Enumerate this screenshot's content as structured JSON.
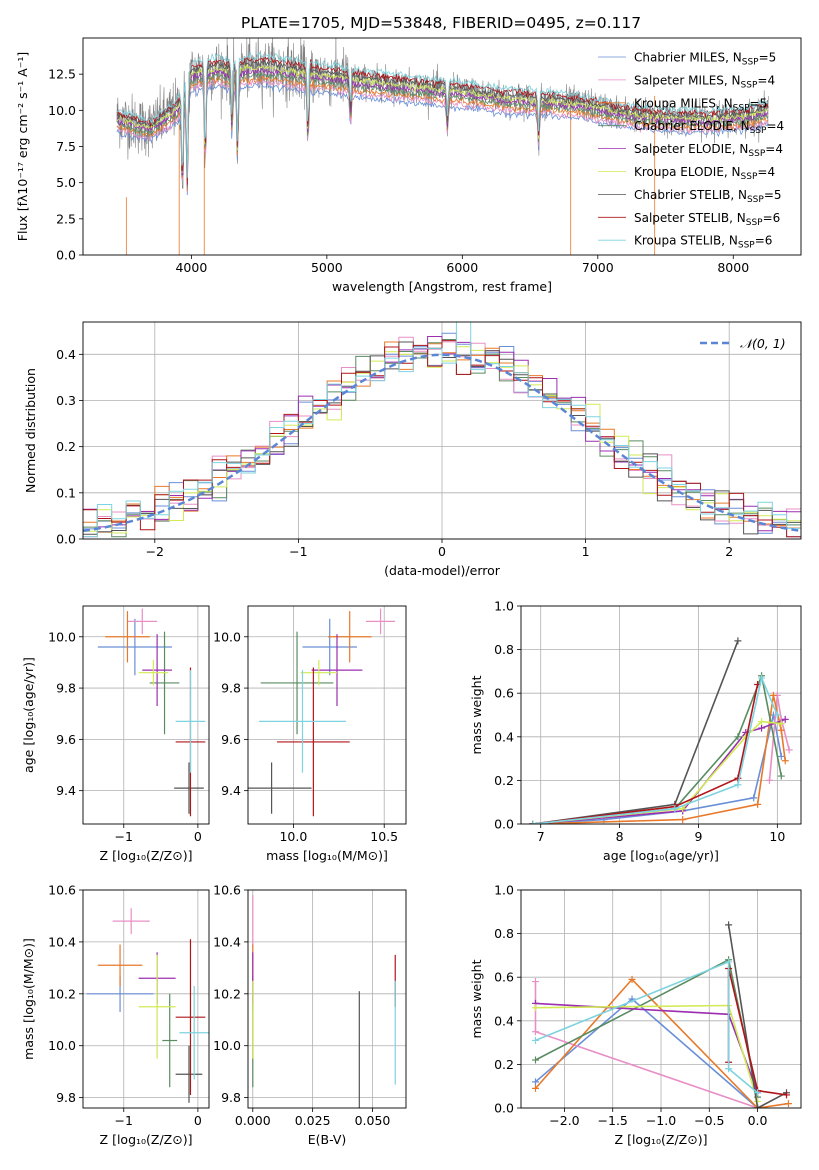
{
  "title": "PLATE=1705, MJD=53848, FIBERID=0495, z=0.117",
  "colors": {
    "Chabrier MILES": "#6a8fd8",
    "Salpeter MILES": "#e88fc6",
    "Kroupa MILES": "#e8792a",
    "Chabrier ELODIE": "#5a8c62",
    "Salpeter ELODIE": "#9b2fb0",
    "Kroupa ELODIE": "#d2ea55",
    "Chabrier STELIB": "#555555",
    "Salpeter STELIB": "#b0151a",
    "Kroupa STELIB": "#7dd3df",
    "data": "#808080",
    "gauss": "#5b86d6"
  },
  "chart_data": [
    {
      "type": "line",
      "title": "PLATE=1705, MJD=53848, FIBERID=0495, z=0.117",
      "xlabel": "wavelength [Angstrom, rest frame]",
      "ylabel": "Flux [fλ10⁻¹⁷ erg cm⁻² s⁻¹ A⁻¹]",
      "xlim": [
        3200,
        8500
      ],
      "ylim": [
        0,
        15
      ],
      "xticks": [
        4000,
        5000,
        6000,
        7000,
        8000
      ],
      "yticks": [
        0.0,
        2.5,
        5.0,
        7.5,
        10.0,
        12.5
      ],
      "legend": "upper right",
      "legend_entries": [
        {
          "name": "Chabrier MILES",
          "label": "Chabrier MILES, N",
          "n": "=5"
        },
        {
          "name": "Salpeter MILES",
          "label": "Salpeter MILES, N",
          "n": "=4"
        },
        {
          "name": "Kroupa MILES",
          "label": "Kroupa MILES, N",
          "n": "=5"
        },
        {
          "name": "Chabrier ELODIE",
          "label": "Chabrier ELODIE, N",
          "n": "=4"
        },
        {
          "name": "Salpeter ELODIE",
          "label": "Salpeter ELODIE, N",
          "n": "=4"
        },
        {
          "name": "Kroupa ELODIE",
          "label": "Kroupa ELODIE, N",
          "n": "=4"
        },
        {
          "name": "Chabrier STELIB",
          "label": "Chabrier STELIB, N",
          "n": "=5"
        },
        {
          "name": "Salpeter STELIB",
          "label": "Salpeter STELIB, N",
          "n": "=6"
        },
        {
          "name": "Kroupa STELIB",
          "label": "Kroupa STELIB, N",
          "n": "=6"
        }
      ],
      "spectrum_continuum": {
        "x": [
          3450,
          3600,
          3700,
          3800,
          3900,
          4000,
          4100,
          4200,
          4300,
          4400,
          4500,
          4700,
          4900,
          5100,
          5300,
          5500,
          5700,
          6000,
          6300,
          6600,
          6900,
          7200,
          7500,
          7800,
          8100,
          8250
        ],
        "y": [
          9.5,
          9.0,
          8.8,
          9.5,
          10.2,
          12.5,
          12.8,
          12.9,
          12.7,
          12.9,
          13.0,
          12.8,
          12.5,
          12.3,
          12.0,
          11.8,
          11.6,
          11.3,
          10.9,
          10.7,
          10.4,
          9.8,
          9.5,
          9.4,
          9.6,
          10.0
        ]
      }
    },
    {
      "type": "histogram",
      "xlabel": "(data-model)/error",
      "ylabel": "Normed distribution",
      "xlim": [
        -2.5,
        2.5
      ],
      "ylim": [
        0,
        0.47
      ],
      "xticks": [
        -2,
        -1,
        0,
        1,
        2
      ],
      "yticks": [
        0.0,
        0.1,
        0.2,
        0.3,
        0.4
      ],
      "legend": "upper right",
      "legend_label": "𝒩(0, 1)",
      "gaussian": {
        "mean": 0,
        "sigma": 1
      },
      "bin_width": 0.1
    },
    {
      "type": "scatter",
      "xlabel": "Z [log₁₀(Z/Z⊙)]",
      "ylabel": "age  [log₁₀(age/yr)]",
      "xlim": [
        -1.55,
        0.15
      ],
      "ylim": [
        9.27,
        10.12
      ],
      "xticks": [
        -1,
        0
      ],
      "yticks": [
        9.4,
        9.6,
        9.8,
        10.0
      ],
      "points": [
        {
          "series": "Chabrier MILES",
          "x": -0.85,
          "xerr": 0.5,
          "y": 9.96,
          "yerr": 0.11
        },
        {
          "series": "Salpeter MILES",
          "x": -0.75,
          "xerr": 0.2,
          "y": 10.06,
          "yerr": 0.05
        },
        {
          "series": "Kroupa MILES",
          "x": -0.95,
          "xerr": 0.3,
          "y": 10.0,
          "yerr": 0.1
        },
        {
          "series": "Chabrier ELODIE",
          "x": -0.45,
          "xerr": 0.2,
          "y": 9.82,
          "yerr": 0.2
        },
        {
          "series": "Salpeter ELODIE",
          "x": -0.55,
          "xerr": 0.2,
          "y": 9.87,
          "yerr": 0.14
        },
        {
          "series": "Kroupa ELODIE",
          "x": -0.6,
          "xerr": 0.2,
          "y": 9.86,
          "yerr": 0.05
        },
        {
          "series": "Chabrier STELIB",
          "x": -0.12,
          "xerr": 0.2,
          "y": 9.41,
          "yerr": 0.1
        },
        {
          "series": "Salpeter STELIB",
          "x": -0.1,
          "xerr": 0.2,
          "y": 9.59,
          "yerr": 0.29
        },
        {
          "series": "Kroupa STELIB",
          "x": -0.1,
          "xerr": 0.2,
          "y": 9.67,
          "yerr": 0.2
        }
      ]
    },
    {
      "type": "scatter",
      "xlabel": "mass [log₁₀(M/M⊙)]",
      "ylabel": "",
      "xlim": [
        9.75,
        10.62
      ],
      "ylim": [
        9.27,
        10.12
      ],
      "xticks": [
        10.0,
        10.5
      ],
      "yticks": [
        9.4,
        9.6,
        9.8,
        10.0
      ],
      "points": [
        {
          "series": "Chabrier MILES",
          "x": 10.2,
          "xerr": 0.15,
          "y": 9.96,
          "yerr": 0.11
        },
        {
          "series": "Salpeter MILES",
          "x": 10.48,
          "xerr": 0.08,
          "y": 10.06,
          "yerr": 0.05
        },
        {
          "series": "Kroupa MILES",
          "x": 10.31,
          "xerr": 0.12,
          "y": 10.0,
          "yerr": 0.1
        },
        {
          "series": "Chabrier ELODIE",
          "x": 10.02,
          "xerr": 0.2,
          "y": 9.82,
          "yerr": 0.2
        },
        {
          "series": "Salpeter ELODIE",
          "x": 10.24,
          "xerr": 0.14,
          "y": 9.87,
          "yerr": 0.14
        },
        {
          "series": "Kroupa ELODIE",
          "x": 10.14,
          "xerr": 0.1,
          "y": 9.86,
          "yerr": 0.05
        },
        {
          "series": "Chabrier STELIB",
          "x": 9.88,
          "xerr": 0.22,
          "y": 9.41,
          "yerr": 0.1
        },
        {
          "series": "Salpeter STELIB",
          "x": 10.11,
          "xerr": 0.2,
          "y": 9.59,
          "yerr": 0.29
        },
        {
          "series": "Kroupa STELIB",
          "x": 10.05,
          "xerr": 0.24,
          "y": 9.67,
          "yerr": 0.2
        }
      ]
    },
    {
      "type": "line",
      "xlabel": "age  [log₁₀(age/yr)]",
      "ylabel": "mass weight",
      "xlim": [
        6.75,
        10.3
      ],
      "ylim": [
        0,
        1
      ],
      "xticks": [
        7,
        8,
        9,
        10
      ],
      "yticks": [
        0.0,
        0.2,
        0.4,
        0.6,
        0.8,
        1.0
      ],
      "grid": true,
      "series": [
        {
          "name": "Chabrier MILES",
          "x": [
            6.9,
            7.8,
            8.8,
            9.7,
            9.95,
            10.05
          ],
          "y": [
            0.0,
            0.02,
            0.06,
            0.12,
            0.5,
            0.31
          ]
        },
        {
          "name": "Salpeter MILES",
          "x": [
            9.9,
            10.0,
            10.05,
            10.15
          ],
          "y": [
            0.2,
            0.59,
            0.48,
            0.34
          ]
        },
        {
          "name": "Kroupa MILES",
          "x": [
            6.9,
            8.8,
            9.75,
            9.95,
            10.05,
            10.1
          ],
          "y": [
            0.0,
            0.02,
            0.09,
            0.59,
            0.43,
            0.29
          ]
        },
        {
          "name": "Chabrier ELODIE",
          "x": [
            6.9,
            8.7,
            9.5,
            9.8,
            10.05
          ],
          "y": [
            0.0,
            0.07,
            0.4,
            0.68,
            0.22
          ]
        },
        {
          "name": "Salpeter ELODIE",
          "x": [
            6.9,
            8.8,
            9.6,
            9.8,
            10.1
          ],
          "y": [
            0.0,
            0.06,
            0.42,
            0.44,
            0.48
          ]
        },
        {
          "name": "Kroupa ELODIE",
          "x": [
            6.9,
            8.8,
            9.6,
            9.8,
            10.05
          ],
          "y": [
            0.0,
            0.07,
            0.4,
            0.47,
            0.46
          ]
        },
        {
          "name": "Chabrier STELIB",
          "x": [
            6.9,
            8.7,
            9.5
          ],
          "y": [
            0.0,
            0.09,
            0.84
          ]
        },
        {
          "name": "Salpeter STELIB",
          "x": [
            6.9,
            8.7,
            9.5,
            9.75
          ],
          "y": [
            0.0,
            0.08,
            0.21,
            0.64
          ]
        },
        {
          "name": "Kroupa STELIB",
          "x": [
            6.9,
            8.7,
            9.5,
            9.8,
            10.0
          ],
          "y": [
            0.0,
            0.07,
            0.18,
            0.67,
            0.5
          ]
        }
      ]
    },
    {
      "type": "scatter",
      "xlabel": "Z [log₁₀(Z/Z⊙)]",
      "ylabel": "mass [log₁₀(M/M⊙)]",
      "xlim": [
        -1.55,
        0.15
      ],
      "ylim": [
        9.76,
        10.6
      ],
      "xticks": [
        -1,
        0
      ],
      "yticks": [
        9.8,
        10.0,
        10.2,
        10.4,
        10.6
      ],
      "points": [
        {
          "series": "Chabrier MILES",
          "x": -1.05,
          "xerr": 0.45,
          "y": 10.2,
          "yerr": 0.07
        },
        {
          "series": "Salpeter MILES",
          "x": -0.9,
          "xerr": 0.25,
          "y": 10.48,
          "yerr": 0.05
        },
        {
          "series": "Kroupa MILES",
          "x": -1.05,
          "xerr": 0.3,
          "y": 10.31,
          "yerr": 0.08
        },
        {
          "series": "Chabrier ELODIE",
          "x": -0.38,
          "xerr": 0.1,
          "y": 10.02,
          "yerr": 0.18
        },
        {
          "series": "Salpeter ELODIE",
          "x": -0.55,
          "xerr": 0.25,
          "y": 10.26,
          "yerr": 0.1
        },
        {
          "series": "Kroupa ELODIE",
          "x": -0.55,
          "xerr": 0.25,
          "y": 10.15,
          "yerr": 0.2
        },
        {
          "series": "Chabrier STELIB",
          "x": -0.12,
          "xerr": 0.18,
          "y": 9.89,
          "yerr": 0.11
        },
        {
          "series": "Salpeter STELIB",
          "x": -0.1,
          "xerr": 0.2,
          "y": 10.11,
          "yerr": 0.3
        },
        {
          "series": "Kroupa STELIB",
          "x": -0.05,
          "xerr": 0.2,
          "y": 10.05,
          "yerr": 0.18
        }
      ]
    },
    {
      "type": "scatter",
      "xlabel": "E(B-V)",
      "ylabel": "",
      "xlim": [
        -0.002,
        0.064
      ],
      "ylim": [
        9.76,
        10.6
      ],
      "xticks": [
        0.0,
        0.025,
        0.05
      ],
      "tick_labels": [
        "0.000",
        "0.025",
        "0.050"
      ],
      "yticks": [
        9.8,
        10.0,
        10.2,
        10.4,
        10.6
      ],
      "points": [
        {
          "series": "Chabrier MILES",
          "x": 0.0,
          "y": 10.2,
          "yerr": 0.07
        },
        {
          "series": "Salpeter MILES",
          "x": 0.0,
          "y": 10.48,
          "yerr": 0.1
        },
        {
          "series": "Kroupa MILES",
          "x": 0.0,
          "y": 10.31,
          "yerr": 0.08
        },
        {
          "series": "Chabrier ELODIE",
          "x": 0.0,
          "y": 10.02,
          "yerr": 0.18
        },
        {
          "series": "Salpeter ELODIE",
          "x": 0.0,
          "y": 10.26,
          "yerr": 0.1
        },
        {
          "series": "Kroupa ELODIE",
          "x": 0.0,
          "y": 10.1,
          "yerr": 0.15
        },
        {
          "series": "Chabrier STELIB",
          "x": 0.0445,
          "y": 9.98,
          "yerr": 0.23
        },
        {
          "series": "Salpeter STELIB",
          "x": 0.0595,
          "y": 10.25,
          "yerr": 0.1
        },
        {
          "series": "Kroupa STELIB",
          "x": 0.0595,
          "y": 10.05,
          "yerr": 0.2
        }
      ]
    },
    {
      "type": "line",
      "xlabel": "Z [log₁₀(Z/Z⊙)]",
      "ylabel": "mass weight",
      "xlim": [
        -2.45,
        0.45
      ],
      "ylim": [
        0,
        1
      ],
      "xticks": [
        -2.0,
        -1.5,
        -1.0,
        -0.5,
        0.0
      ],
      "yticks": [
        0.0,
        0.2,
        0.4,
        0.6,
        0.8,
        1.0
      ],
      "grid": true,
      "series": [
        {
          "name": "Chabrier MILES",
          "x": [
            -2.3,
            -1.3,
            0.0
          ],
          "y": [
            0.12,
            0.5,
            0.0
          ]
        },
        {
          "name": "Salpeter MILES",
          "x": [
            -2.3,
            -2.3,
            0.0
          ],
          "y": [
            0.58,
            0.35,
            0.0
          ]
        },
        {
          "name": "Kroupa MILES",
          "x": [
            -2.3,
            -1.3,
            0.0,
            0.32
          ],
          "y": [
            0.09,
            0.59,
            0.0,
            0.02
          ]
        },
        {
          "name": "Chabrier ELODIE",
          "x": [
            -2.3,
            -0.3,
            0.0
          ],
          "y": [
            0.22,
            0.68,
            0.05
          ]
        },
        {
          "name": "Salpeter ELODIE",
          "x": [
            -2.3,
            -0.3,
            0.0
          ],
          "y": [
            0.48,
            0.43,
            0.07
          ]
        },
        {
          "name": "Kroupa ELODIE",
          "x": [
            -2.3,
            -0.3,
            0.0
          ],
          "y": [
            0.46,
            0.47,
            0.03
          ]
        },
        {
          "name": "Chabrier STELIB",
          "x": [
            -0.3,
            0.0,
            0.3
          ],
          "y": [
            0.84,
            0.0,
            0.07
          ]
        },
        {
          "name": "Salpeter STELIB",
          "x": [
            -0.3,
            -0.3,
            0.0,
            0.3
          ],
          "y": [
            0.21,
            0.64,
            0.08,
            0.06
          ]
        },
        {
          "name": "Kroupa STELIB",
          "x": [
            -2.3,
            -0.3,
            -0.3,
            0.0
          ],
          "y": [
            0.31,
            0.67,
            0.18,
            0.07
          ]
        }
      ]
    }
  ]
}
